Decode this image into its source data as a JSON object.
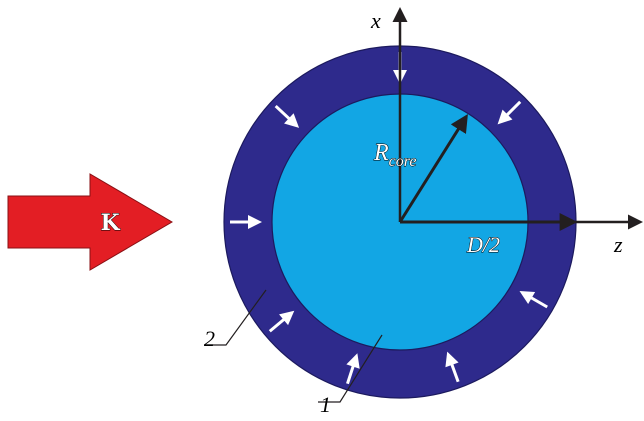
{
  "diagram": {
    "axes": {
      "x_label": "x",
      "z_label": "z"
    },
    "incoming_arrow": {
      "label": "K",
      "color": "#e31e24"
    },
    "labels": {
      "radius_prefix": "R",
      "radius_subscript": "core",
      "diameter": "D/2"
    },
    "regions": [
      {
        "id": "core",
        "number": "1",
        "color": "#12a6e4"
      },
      {
        "id": "shell",
        "number": "2",
        "color": "#2e2a8c"
      }
    ],
    "colors": {
      "arrow": "#231f20",
      "inward_arrow": "#ffffff"
    }
  }
}
